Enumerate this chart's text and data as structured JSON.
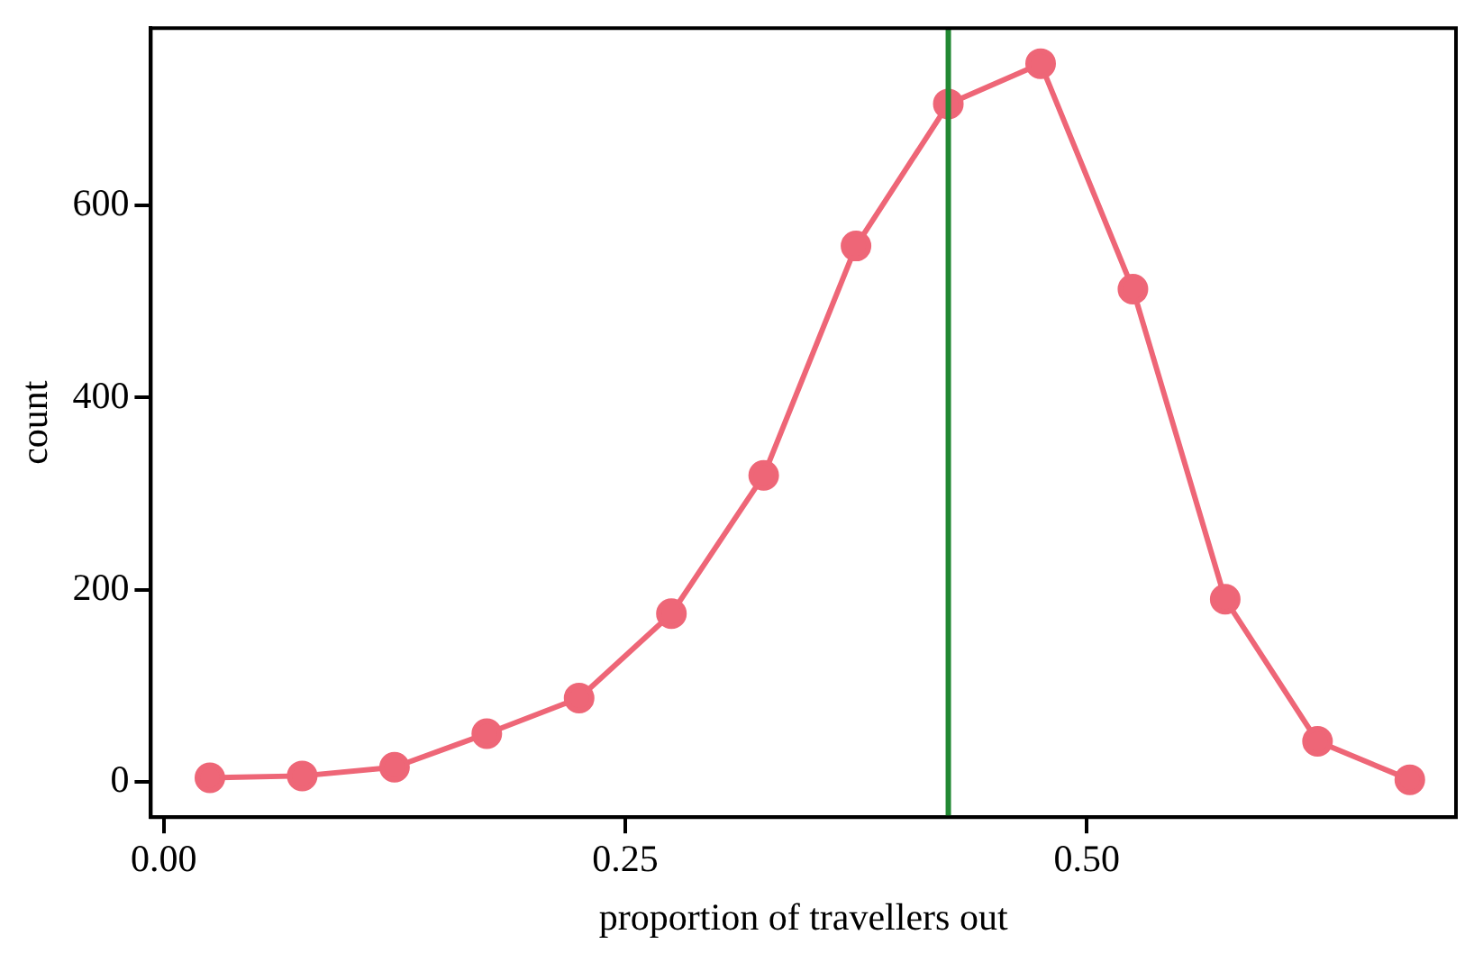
{
  "chart_data": {
    "type": "line",
    "xlabel": "proportion of travellers out",
    "ylabel": "count",
    "x": [
      0.025,
      0.075,
      0.125,
      0.175,
      0.225,
      0.275,
      0.325,
      0.375,
      0.425,
      0.475,
      0.525,
      0.575,
      0.625,
      0.675
    ],
    "series": [
      {
        "color": "#ee6677",
        "values": [
          4,
          6,
          15,
          50,
          87,
          175,
          319,
          558,
          706,
          748,
          513,
          190,
          42,
          2
        ]
      }
    ],
    "xlim": [
      -0.007,
      0.7
    ],
    "xticks": [
      {
        "value": 0,
        "label": "0.00"
      },
      0.25,
      {
        "value": 0.5,
        "label": "0.50"
      }
    ],
    "ylim": [
      -37,
      785
    ],
    "yticks": [
      0,
      200,
      400,
      600
    ],
    "ref_lines": [
      {
        "axis": "x",
        "value": 0.425,
        "color": "#228833"
      }
    ],
    "marker": "circle",
    "grid": false,
    "legend": false
  }
}
